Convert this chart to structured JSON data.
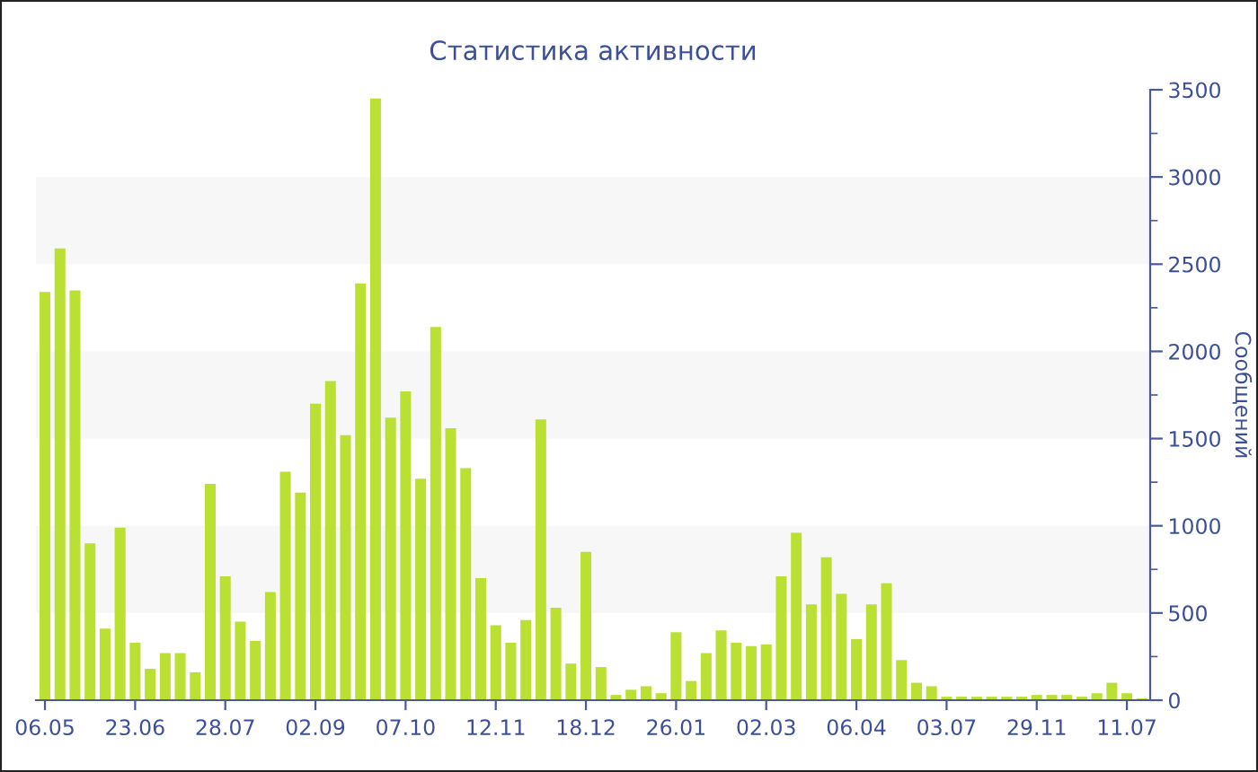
{
  "chart_data": {
    "type": "bar",
    "title": "Статистика активности",
    "ylabel": "Сообщений",
    "categories": [
      "06.05",
      null,
      null,
      null,
      null,
      null,
      "23.06",
      null,
      null,
      null,
      null,
      null,
      "28.07",
      null,
      null,
      null,
      null,
      null,
      "02.09",
      null,
      null,
      null,
      null,
      null,
      "07.10",
      null,
      null,
      null,
      null,
      null,
      "12.11",
      null,
      null,
      null,
      null,
      null,
      "18.12",
      null,
      null,
      null,
      null,
      null,
      "26.01",
      null,
      null,
      null,
      null,
      null,
      "02.03",
      null,
      null,
      null,
      null,
      null,
      "06.04",
      null,
      null,
      null,
      null,
      null,
      "03.07",
      null,
      null,
      null,
      null,
      null,
      "29.11",
      null,
      null,
      null,
      null,
      null,
      "11.07",
      null
    ],
    "values": [
      2340,
      2590,
      2350,
      900,
      410,
      990,
      330,
      180,
      270,
      270,
      160,
      1240,
      710,
      450,
      340,
      620,
      1310,
      1190,
      1700,
      1830,
      1520,
      2390,
      3450,
      1620,
      1770,
      1270,
      2140,
      1560,
      1330,
      700,
      430,
      330,
      460,
      1610,
      530,
      210,
      850,
      190,
      30,
      60,
      80,
      40,
      390,
      110,
      270,
      400,
      330,
      310,
      320,
      710,
      960,
      550,
      820,
      610,
      350,
      550,
      670,
      230,
      100,
      80,
      20,
      20,
      20,
      20,
      20,
      20,
      30,
      30,
      30,
      20,
      40,
      100,
      40,
      10
    ],
    "color": "#bbe034",
    "ylim": [
      0,
      3500
    ],
    "yticks": [
      0,
      500,
      1000,
      1500,
      2000,
      2500,
      3000,
      3500
    ],
    "bands": [
      {
        "axis": "y",
        "from": 500,
        "to": 1000,
        "color": "#f7f7f7"
      },
      {
        "axis": "y",
        "from": 1500,
        "to": 2000,
        "color": "#f7f7f7"
      },
      {
        "axis": "y",
        "from": 2500,
        "to": 3000,
        "color": "#f7f7f7"
      }
    ],
    "grid": false,
    "legend": false
  }
}
